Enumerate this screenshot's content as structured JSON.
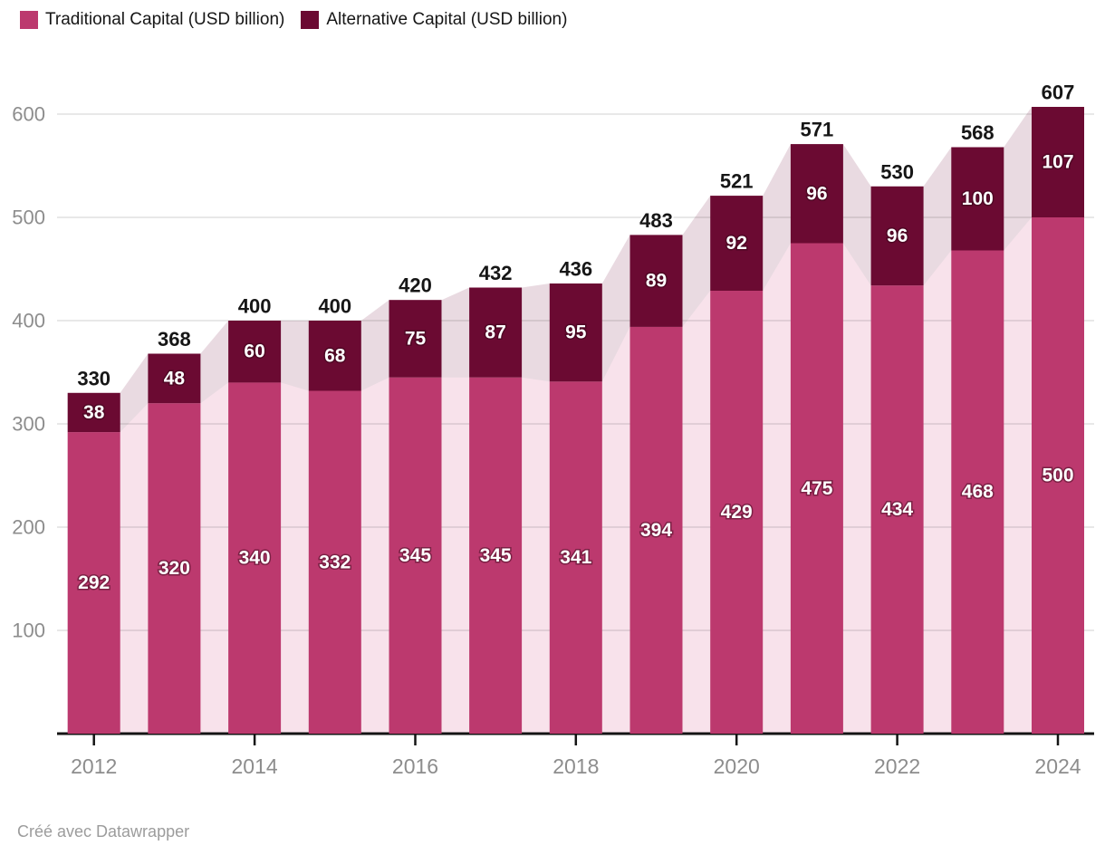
{
  "legend": {
    "items": [
      {
        "label": "Traditional Capital (USD billion)",
        "color": "#bc396e"
      },
      {
        "label": "Alternative Capital (USD billion)",
        "color": "#6b0a32"
      }
    ]
  },
  "footer": {
    "credit": "Créé avec Datawrapper"
  },
  "chart_data": {
    "type": "bar",
    "stacked": true,
    "title": "",
    "xlabel": "",
    "ylabel": "",
    "categories": [
      2012,
      2013,
      2014,
      2015,
      2016,
      2017,
      2018,
      2019,
      2020,
      2021,
      2022,
      2023,
      2024
    ],
    "series": [
      {
        "name": "Traditional Capital (USD billion)",
        "color": "#bc396e",
        "values": [
          292,
          320,
          340,
          332,
          345,
          345,
          341,
          394,
          429,
          475,
          434,
          468,
          500
        ]
      },
      {
        "name": "Alternative Capital (USD billion)",
        "color": "#6b0a32",
        "values": [
          38,
          48,
          60,
          68,
          75,
          87,
          95,
          89,
          92,
          96,
          96,
          100,
          107
        ]
      }
    ],
    "totals": [
      330,
      368,
      400,
      400,
      420,
      432,
      436,
      483,
      521,
      571,
      530,
      568,
      607
    ],
    "ylim": [
      0,
      620
    ],
    "yticks": [
      100,
      200,
      300,
      400,
      500,
      600
    ],
    "xticks": [
      2012,
      2014,
      2016,
      2018,
      2020,
      2022,
      2024
    ],
    "grid": true,
    "legend_position": "top",
    "background_area": "pale stacked area behind bars connecting bar values",
    "colors": {
      "traditional": "#bc396e",
      "alternative": "#6b0a32",
      "traditional_area": "#f8e2eb",
      "alternative_area": "#e9dae1",
      "gridline": "rgba(0,0,0,0.12)",
      "axis": "#141414",
      "axis_label": "#8d8d8d",
      "total_label": "#161616",
      "value_label": "#ffffff"
    }
  }
}
